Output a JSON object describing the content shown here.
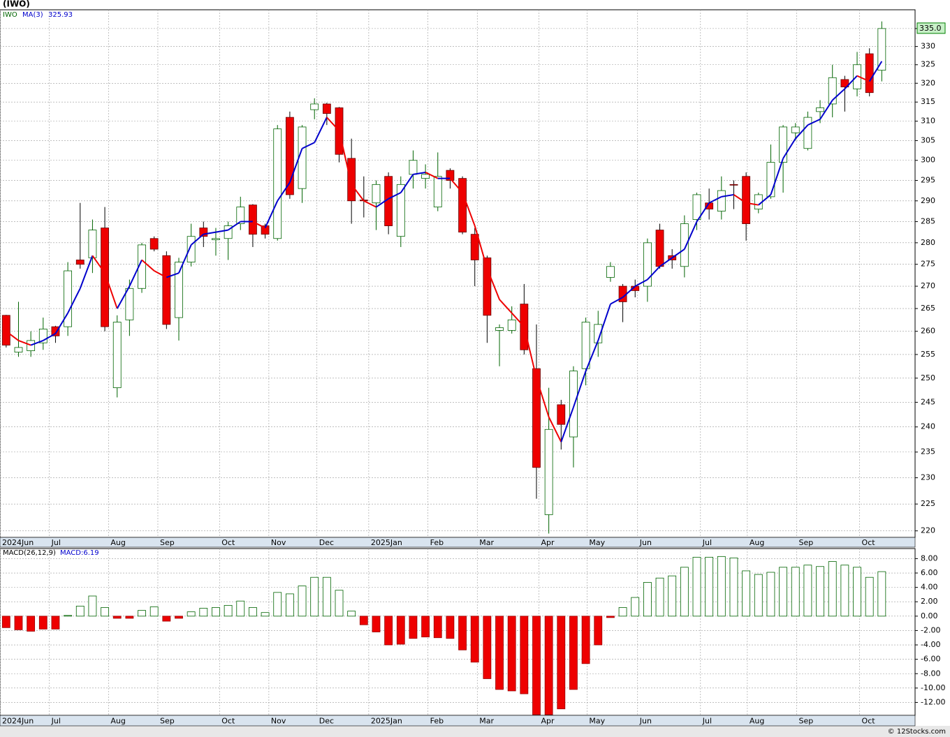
{
  "title": "(IWO)",
  "credit": "© 12Stocks.com",
  "chart_data": [
    {
      "type": "candlestick",
      "log_scale": true,
      "grid": true,
      "last_label": "335.0",
      "xlim": [
        -0.5,
        73.7
      ],
      "xticks": [
        {
          "value": -0.5,
          "label": "2024Jun"
        },
        {
          "value": 3.5,
          "label": "Jul"
        },
        {
          "value": 8.3,
          "label": "Aug"
        },
        {
          "value": 12.3,
          "label": "Sep"
        },
        {
          "value": 17.3,
          "label": "Oct"
        },
        {
          "value": 21.3,
          "label": "Nov"
        },
        {
          "value": 25.2,
          "label": "Dec"
        },
        {
          "value": 29.4,
          "label": "2025Jan"
        },
        {
          "value": 34.2,
          "label": "Feb"
        },
        {
          "value": 38.2,
          "label": "Mar"
        },
        {
          "value": 43.2,
          "label": "Apr"
        },
        {
          "value": 47.1,
          "label": "May"
        },
        {
          "value": 51.2,
          "label": "Jun"
        },
        {
          "value": 56.3,
          "label": "Jul"
        },
        {
          "value": 60.1,
          "label": "Aug"
        },
        {
          "value": 64.1,
          "label": "Sep"
        },
        {
          "value": 69.2,
          "label": "Oct"
        }
      ],
      "ylim": [
        218.8,
        340.3
      ],
      "yticks": [
        220,
        225,
        230,
        235,
        240,
        245,
        250,
        255,
        260,
        265,
        270,
        275,
        280,
        285,
        290,
        295,
        300,
        305,
        310,
        315,
        320,
        325,
        330,
        335
      ],
      "series": [
        {
          "name": "IWO",
          "up_color": "#006400",
          "down_color": "#ee0000",
          "open": [
            263.5,
            255.5,
            255.8,
            257.5,
            261,
            261,
            276,
            276.5,
            283.5,
            248,
            262.5,
            269.5,
            281,
            277,
            263,
            275.5,
            283.5,
            280.7,
            281,
            284.5,
            289,
            284,
            281,
            311,
            293,
            313,
            314.5,
            313.5,
            300.5,
            290.2,
            289.5,
            296,
            281.5,
            296.5,
            295.5,
            288.5,
            297.5,
            295.5,
            282,
            276.5,
            260.2,
            260.2,
            266,
            252,
            223,
            244.5,
            238,
            252,
            257.5,
            272,
            270,
            270,
            270,
            283,
            277,
            274.5,
            285.5,
            289.5,
            287.5,
            294,
            296,
            288,
            291,
            299.5,
            307,
            303,
            312.5,
            314.5,
            321,
            318.5,
            328,
            323.5
          ],
          "high": [
            263.6,
            266.5,
            260,
            263,
            261.2,
            275.5,
            289.5,
            285.5,
            288.5,
            263.5,
            271.5,
            280,
            281.5,
            278,
            276.5,
            284.5,
            285,
            283.5,
            285,
            291,
            289.2,
            284.5,
            309,
            312.5,
            309,
            316,
            314.8,
            313.7,
            305.5,
            296,
            295,
            297,
            296,
            302.5,
            299,
            302,
            298,
            296,
            283.5,
            277,
            261.5,
            265.5,
            270.5,
            261.5,
            248,
            245.5,
            252.5,
            263,
            264.5,
            275.5,
            270.5,
            271.5,
            281,
            284.5,
            278.5,
            286.5,
            292,
            293,
            296,
            295,
            297,
            292,
            304,
            309,
            309.5,
            312.5,
            315.5,
            325,
            322,
            328.5,
            329.5,
            337
          ],
          "low": [
            256.5,
            254.5,
            254.5,
            256,
            257.5,
            259,
            274,
            273,
            260,
            246,
            259,
            268.5,
            278,
            260.5,
            258,
            274.5,
            279,
            277,
            276,
            283,
            279,
            281,
            280.5,
            290.5,
            289.5,
            310.5,
            309,
            299.5,
            284.5,
            286,
            283,
            282,
            279,
            293,
            293,
            287.5,
            293,
            282,
            270,
            257.5,
            252.5,
            259.5,
            255,
            226,
            219.5,
            235.5,
            232,
            248.5,
            254.5,
            271,
            262,
            267.5,
            266.5,
            274,
            274,
            272,
            283,
            285.5,
            285.5,
            288,
            280.5,
            287,
            290.5,
            292,
            305,
            302.5,
            309.5,
            311,
            312.5,
            316.5,
            316.5,
            320.5
          ],
          "close": [
            257,
            256.5,
            258,
            260.5,
            259,
            273.5,
            275,
            283,
            261,
            262,
            269.5,
            279.5,
            278.5,
            261.5,
            275.5,
            281.5,
            281.5,
            281,
            284,
            288.5,
            282,
            282,
            308,
            291.5,
            308.5,
            314.5,
            312,
            301.5,
            290,
            290,
            294,
            284,
            294,
            300,
            296.5,
            296,
            295,
            282.5,
            276,
            263.5,
            260.8,
            262.5,
            256,
            232,
            239.5,
            240.5,
            251.5,
            262,
            261.5,
            274.5,
            266.5,
            269,
            280,
            274.5,
            276,
            284.5,
            291.5,
            288,
            292.5,
            293.9,
            284.5,
            291.5,
            299.5,
            308.5,
            308.5,
            311,
            313.5,
            321.5,
            319,
            325,
            317.5,
            335
          ]
        },
        {
          "name": "MA(3)",
          "up_color": "#0000cc",
          "down_color": "#ee0000",
          "values": [
            260,
            258,
            257,
            258,
            259.5,
            264,
            269.5,
            277,
            273,
            265,
            270,
            276,
            273.5,
            272,
            273,
            279.5,
            282,
            282.5,
            283,
            285,
            285,
            283.5,
            290,
            294.5,
            303,
            304.5,
            311,
            307.5,
            294,
            290,
            288.5,
            290.5,
            292,
            296.5,
            297,
            295.5,
            295.5,
            292,
            284,
            274,
            267,
            264,
            261,
            250,
            242,
            237,
            244,
            251.5,
            258,
            266,
            267.5,
            270,
            271.5,
            274.5,
            276.5,
            278.5,
            285,
            289.5,
            291,
            291.5,
            289.5,
            289,
            291.5,
            300.5,
            305.5,
            309,
            310.5,
            315.5,
            318.5,
            322,
            320.5,
            325.93
          ]
        }
      ]
    },
    {
      "type": "bar",
      "grid": true,
      "last_label": "MACD:6.19",
      "xlim": [
        -0.5,
        73.7
      ],
      "xticks": [
        {
          "value": -0.5,
          "label": "2024Jun"
        },
        {
          "value": 3.5,
          "label": "Jul"
        },
        {
          "value": 8.3,
          "label": "Aug"
        },
        {
          "value": 12.3,
          "label": "Sep"
        },
        {
          "value": 17.3,
          "label": "Oct"
        },
        {
          "value": 21.3,
          "label": "Nov"
        },
        {
          "value": 25.2,
          "label": "Dec"
        },
        {
          "value": 29.4,
          "label": "2025Jan"
        },
        {
          "value": 34.2,
          "label": "Feb"
        },
        {
          "value": 38.2,
          "label": "Mar"
        },
        {
          "value": 43.2,
          "label": "Apr"
        },
        {
          "value": 47.1,
          "label": "May"
        },
        {
          "value": 51.2,
          "label": "Jun"
        },
        {
          "value": 56.3,
          "label": "Jul"
        },
        {
          "value": 60.1,
          "label": "Aug"
        },
        {
          "value": 64.1,
          "label": "Sep"
        },
        {
          "value": 69.2,
          "label": "Oct"
        }
      ],
      "ylim": [
        -13.8,
        9.4
      ],
      "yticks": [
        {
          "value": 8,
          "label": "8.00"
        },
        {
          "value": 6,
          "label": "6.00"
        },
        {
          "value": 4,
          "label": "4.00"
        },
        {
          "value": 2,
          "label": "2.00"
        },
        {
          "value": 0,
          "label": "0.00"
        },
        {
          "value": -2,
          "label": "-2.00"
        },
        {
          "value": -4,
          "label": "-4.00"
        },
        {
          "value": -6,
          "label": "-6.00"
        },
        {
          "value": -8,
          "label": "-8.00"
        },
        {
          "value": -10,
          "label": "-10.00"
        },
        {
          "value": -12,
          "label": "-12.00"
        }
      ],
      "series": [
        {
          "name": "MACD(26,12,9)",
          "up_color": "#006400",
          "down_color": "#ee0000",
          "values": [
            -1.6,
            -1.9,
            -2.1,
            -1.8,
            -1.8,
            0.1,
            1.4,
            2.8,
            1.2,
            -0.3,
            -0.3,
            0.8,
            1.3,
            -0.7,
            -0.3,
            0.6,
            1.1,
            1.2,
            1.5,
            2.1,
            1.2,
            0.5,
            3.3,
            3.1,
            4.2,
            5.4,
            5.4,
            3.6,
            0.7,
            -1.2,
            -2.2,
            -4,
            -3.9,
            -3.1,
            -2.9,
            -3,
            -3.1,
            -4.7,
            -6.4,
            -8.7,
            -10.2,
            -10.4,
            -10.8,
            -13.7,
            -13.7,
            -12.9,
            -10.2,
            -6.6,
            -4,
            -0.2,
            1.2,
            2.6,
            4.7,
            5.3,
            5.6,
            6.8,
            8.2,
            8.2,
            8.3,
            8.1,
            6.3,
            5.8,
            6.1,
            6.8,
            6.8,
            7.1,
            6.9,
            7.6,
            7.1,
            6.8,
            5.4,
            6.19
          ]
        }
      ]
    }
  ]
}
